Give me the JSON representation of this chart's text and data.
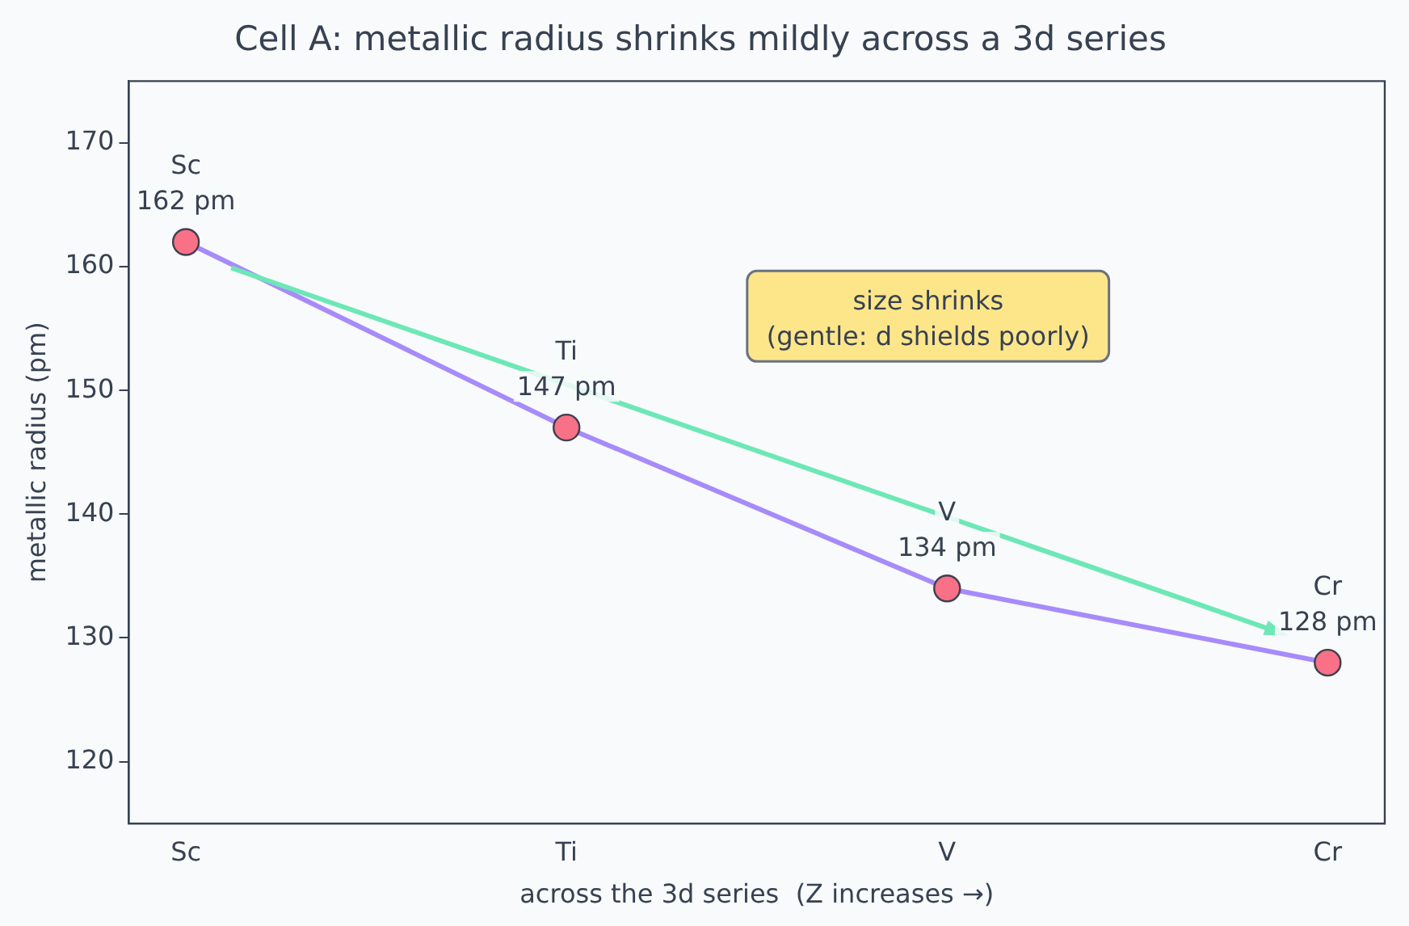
{
  "chart_data": {
    "type": "line",
    "title": "Cell A: metallic radius shrinks mildly across a 3d series",
    "xlabel": "across the 3d series  (Z increases →)",
    "ylabel": "metallic radius (pm)",
    "categories": [
      "Sc",
      "Ti",
      "V",
      "Cr"
    ],
    "series": [
      {
        "color": "#a78bfa",
        "values": [
          162,
          147,
          134,
          128
        ]
      }
    ],
    "marker": "circle",
    "grid": false,
    "legend": false,
    "ylim": [
      115,
      175
    ],
    "yticks": [
      120,
      130,
      140,
      150,
      160,
      170
    ],
    "annotations": [
      {
        "text": "Sc\n162 pm",
        "x": "Sc",
        "y": 162
      },
      {
        "text": "Ti\n147 pm",
        "x": "Ti",
        "y": 147
      },
      {
        "text": "V\n134 pm",
        "x": "V",
        "y": 134
      },
      {
        "text": "Cr\n128 pm",
        "x": "Cr",
        "y": 128
      },
      "size shrinks\n(gentle: d shields poorly)"
    ]
  }
}
